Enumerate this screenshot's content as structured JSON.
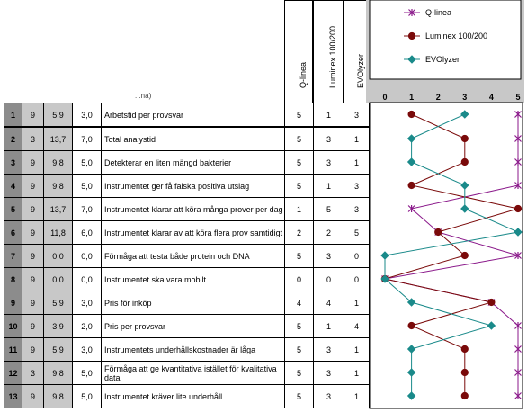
{
  "header": {
    "col_labels": [
      "Q-linea",
      "Luminex 100/200",
      "EVOlyzer"
    ],
    "partial_text": "...na)"
  },
  "rows": [
    {
      "num": "1",
      "w1": "9",
      "w2": "5,9",
      "w3": "3,0",
      "criterion": "Arbetstid per provsvar",
      "q": "5",
      "l": "1",
      "e": "3"
    },
    {
      "num": "2",
      "w1": "3",
      "w2": "13,7",
      "w3": "7,0",
      "criterion": "Total analystid",
      "q": "5",
      "l": "3",
      "e": "1"
    },
    {
      "num": "3",
      "w1": "9",
      "w2": "9,8",
      "w3": "5,0",
      "criterion": "Detekterar en liten mängd bakterier",
      "q": "5",
      "l": "3",
      "e": "1"
    },
    {
      "num": "4",
      "w1": "9",
      "w2": "9,8",
      "w3": "5,0",
      "criterion": "Instrumentet ger få falska positiva utslag",
      "q": "5",
      "l": "1",
      "e": "3"
    },
    {
      "num": "5",
      "w1": "9",
      "w2": "13,7",
      "w3": "7,0",
      "criterion": "Instrumentet klarar att köra många prover per dag",
      "q": "1",
      "l": "5",
      "e": "3"
    },
    {
      "num": "6",
      "w1": "9",
      "w2": "11,8",
      "w3": "6,0",
      "criterion": "Instrumentet klarar av att köra flera prov samtidigt",
      "q": "2",
      "l": "2",
      "e": "5"
    },
    {
      "num": "7",
      "w1": "9",
      "w2": "0,0",
      "w3": "0,0",
      "criterion": "Förmåga att testa både protein och DNA",
      "q": "5",
      "l": "3",
      "e": "0"
    },
    {
      "num": "8",
      "w1": "9",
      "w2": "0,0",
      "w3": "0,0",
      "criterion": "Instrumentet ska vara mobilt",
      "q": "0",
      "l": "0",
      "e": "0"
    },
    {
      "num": "9",
      "w1": "9",
      "w2": "5,9",
      "w3": "3,0",
      "criterion": "Pris för inköp",
      "q": "4",
      "l": "4",
      "e": "1"
    },
    {
      "num": "10",
      "w1": "9",
      "w2": "3,9",
      "w3": "2,0",
      "criterion": "Pris per provsvar",
      "q": "5",
      "l": "1",
      "e": "4"
    },
    {
      "num": "11",
      "w1": "9",
      "w2": "5,9",
      "w3": "3,0",
      "criterion": "Instrumentets underhållskostnader är låga",
      "q": "5",
      "l": "3",
      "e": "1"
    },
    {
      "num": "12",
      "w1": "3",
      "w2": "9,8",
      "w3": "5,0",
      "criterion": "Förmåga att ge kvantitativa istället för kvalitativa data",
      "q": "5",
      "l": "3",
      "e": "1"
    },
    {
      "num": "13",
      "w1": "9",
      "w2": "9,8",
      "w3": "5,0",
      "criterion": "Instrumentet kräver lite underhåll",
      "q": "5",
      "l": "3",
      "e": "1"
    }
  ],
  "chart_data": {
    "type": "line",
    "x_ticks": [
      "0",
      "1",
      "2",
      "3",
      "4",
      "5"
    ],
    "xlim": [
      0,
      5
    ],
    "categories": [
      "1",
      "2",
      "3",
      "4",
      "5",
      "6",
      "7",
      "8",
      "9",
      "10",
      "11",
      "12",
      "13"
    ],
    "series": [
      {
        "name": "Q-linea",
        "color": "#8b1a8b",
        "marker": "x",
        "values": [
          5,
          5,
          5,
          5,
          1,
          2,
          5,
          0,
          4,
          5,
          5,
          5,
          5
        ]
      },
      {
        "name": "Luminex 100/200",
        "color": "#7a0a0a",
        "marker": "circle",
        "values": [
          1,
          3,
          3,
          1,
          5,
          2,
          3,
          0,
          4,
          1,
          3,
          3,
          3
        ]
      },
      {
        "name": "EVOlyzer",
        "color": "#1a8a8a",
        "marker": "diamond",
        "values": [
          3,
          1,
          1,
          3,
          3,
          5,
          0,
          0,
          1,
          4,
          1,
          1,
          1
        ]
      }
    ],
    "legend_position": "top-right"
  }
}
